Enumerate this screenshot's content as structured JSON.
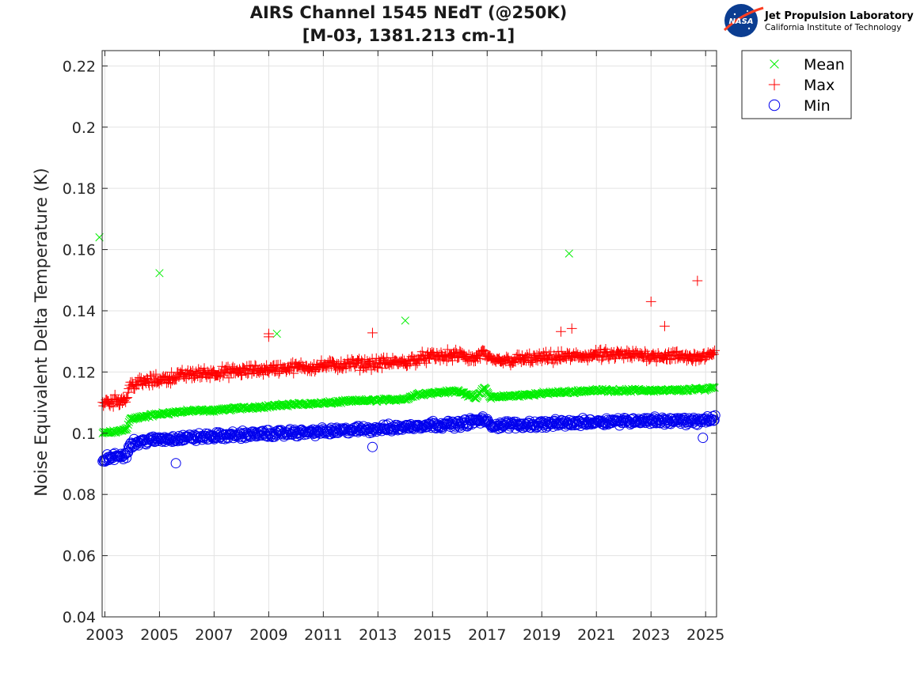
{
  "chart_data": {
    "type": "scatter",
    "title": "AIRS Channel 1545 NEdT (@250K)",
    "subtitle": "[M-03, 1381.213 cm-1]",
    "xlabel": "",
    "ylabel": "Noise Equivalent Delta Temperature (K)",
    "xlim": [
      2002.9,
      2025.4
    ],
    "ylim": [
      0.04,
      0.225
    ],
    "x_ticks": [
      "2003",
      "2005",
      "2007",
      "2009",
      "2011",
      "2013",
      "2015",
      "2017",
      "2019",
      "2021",
      "2023",
      "2025"
    ],
    "x_tick_values": [
      2003,
      2005,
      2007,
      2009,
      2011,
      2013,
      2015,
      2017,
      2019,
      2021,
      2023,
      2025
    ],
    "y_ticks": [
      "0.04",
      "0.06",
      "0.08",
      "0.1",
      "0.12",
      "0.14",
      "0.16",
      "0.18",
      "0.2",
      "0.22"
    ],
    "y_tick_values": [
      0.04,
      0.06,
      0.08,
      0.1,
      0.12,
      0.14,
      0.16,
      0.18,
      0.2,
      0.22
    ],
    "grid": true,
    "legend_position": "outside-top-right",
    "series": [
      {
        "name": "Mean",
        "marker": "x",
        "color": "#00ee00",
        "points": [
          [
            2002.9,
            0.1
          ],
          [
            2003.2,
            0.1003
          ],
          [
            2003.5,
            0.1006
          ],
          [
            2003.8,
            0.1015
          ],
          [
            2003.9,
            0.1045
          ],
          [
            2004.5,
            0.1055
          ],
          [
            2005.0,
            0.1063
          ],
          [
            2006.0,
            0.1072
          ],
          [
            2007.0,
            0.1075
          ],
          [
            2008.0,
            0.1082
          ],
          [
            2009.0,
            0.1088
          ],
          [
            2010.0,
            0.1095
          ],
          [
            2011.0,
            0.1098
          ],
          [
            2012.0,
            0.1105
          ],
          [
            2013.0,
            0.1108
          ],
          [
            2014.0,
            0.1112
          ],
          [
            2014.5,
            0.1128
          ],
          [
            2015.0,
            0.1132
          ],
          [
            2016.0,
            0.1138
          ],
          [
            2016.3,
            0.1125
          ],
          [
            2016.6,
            0.1115
          ],
          [
            2016.9,
            0.115
          ],
          [
            2017.1,
            0.1118
          ],
          [
            2018.0,
            0.1122
          ],
          [
            2019.0,
            0.113
          ],
          [
            2020.0,
            0.1135
          ],
          [
            2021.0,
            0.114
          ],
          [
            2022.0,
            0.114
          ],
          [
            2023.0,
            0.114
          ],
          [
            2024.0,
            0.114
          ],
          [
            2025.0,
            0.1145
          ],
          [
            2025.3,
            0.115
          ]
        ],
        "outliers": [
          [
            2002.8,
            0.164
          ],
          [
            2005.0,
            0.1523
          ],
          [
            2009.3,
            0.1325
          ],
          [
            2014.0,
            0.1368
          ],
          [
            2020.0,
            0.1587
          ]
        ]
      },
      {
        "name": "Max",
        "marker": "+",
        "color": "#ff0000",
        "points": [
          [
            2002.9,
            0.11
          ],
          [
            2003.2,
            0.1105
          ],
          [
            2003.5,
            0.1108
          ],
          [
            2003.8,
            0.1112
          ],
          [
            2003.9,
            0.1158
          ],
          [
            2004.5,
            0.1168
          ],
          [
            2005.0,
            0.1175
          ],
          [
            2006.0,
            0.1192
          ],
          [
            2007.0,
            0.1198
          ],
          [
            2008.0,
            0.1202
          ],
          [
            2009.0,
            0.121
          ],
          [
            2010.0,
            0.1215
          ],
          [
            2011.0,
            0.122
          ],
          [
            2012.0,
            0.1225
          ],
          [
            2013.0,
            0.1228
          ],
          [
            2014.0,
            0.1232
          ],
          [
            2014.5,
            0.1245
          ],
          [
            2015.0,
            0.125
          ],
          [
            2016.0,
            0.1255
          ],
          [
            2016.5,
            0.124
          ],
          [
            2016.9,
            0.1265
          ],
          [
            2017.1,
            0.1235
          ],
          [
            2018.0,
            0.124
          ],
          [
            2019.0,
            0.1245
          ],
          [
            2020.0,
            0.125
          ],
          [
            2021.0,
            0.1255
          ],
          [
            2022.0,
            0.1255
          ],
          [
            2023.0,
            0.1255
          ],
          [
            2024.0,
            0.125
          ],
          [
            2025.0,
            0.125
          ],
          [
            2025.3,
            0.1255
          ]
        ],
        "outliers": [
          [
            2009.0,
            0.1315
          ],
          [
            2009.0,
            0.1325
          ],
          [
            2012.8,
            0.1328
          ],
          [
            2019.7,
            0.1332
          ],
          [
            2020.1,
            0.1342
          ],
          [
            2023.0,
            0.143
          ],
          [
            2023.5,
            0.135
          ],
          [
            2024.7,
            0.1498
          ]
        ]
      },
      {
        "name": "Min",
        "marker": "o",
        "color": "#0000ee",
        "points": [
          [
            2002.9,
            0.0915
          ],
          [
            2003.2,
            0.092
          ],
          [
            2003.5,
            0.0925
          ],
          [
            2003.8,
            0.093
          ],
          [
            2003.9,
            0.0965
          ],
          [
            2004.5,
            0.0975
          ],
          [
            2005.0,
            0.098
          ],
          [
            2006.0,
            0.0985
          ],
          [
            2007.0,
            0.099
          ],
          [
            2008.0,
            0.0995
          ],
          [
            2009.0,
            0.0998
          ],
          [
            2010.0,
            0.1002
          ],
          [
            2011.0,
            0.1005
          ],
          [
            2012.0,
            0.101
          ],
          [
            2013.0,
            0.1015
          ],
          [
            2014.0,
            0.102
          ],
          [
            2014.5,
            0.1025
          ],
          [
            2015.0,
            0.1028
          ],
          [
            2016.0,
            0.103
          ],
          [
            2016.9,
            0.1045
          ],
          [
            2017.1,
            0.1025
          ],
          [
            2018.0,
            0.1028
          ],
          [
            2019.0,
            0.103
          ],
          [
            2020.0,
            0.1033
          ],
          [
            2021.0,
            0.1038
          ],
          [
            2022.0,
            0.104
          ],
          [
            2023.0,
            0.1042
          ],
          [
            2024.0,
            0.104
          ],
          [
            2025.0,
            0.104
          ],
          [
            2025.3,
            0.105
          ]
        ],
        "outliers": [
          [
            2005.6,
            0.0902
          ],
          [
            2012.8,
            0.0955
          ],
          [
            2024.9,
            0.0985
          ]
        ]
      }
    ]
  },
  "logo": {
    "badge_text": "NASA",
    "line1": "Jet Propulsion Laboratory",
    "line2": "California Institute of Technology"
  }
}
